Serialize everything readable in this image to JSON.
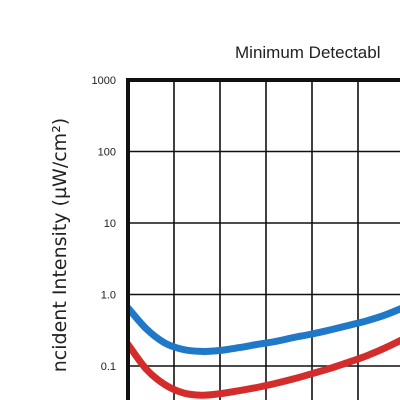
{
  "chart_data": {
    "type": "line",
    "title": "Minimum Detectabl",
    "ylabel": "ncident Intensity (µW/cm²)",
    "xlabel": "",
    "y_scale": "log",
    "y_ticks": [
      "1000",
      "100",
      "10",
      "1.0",
      "0.1"
    ],
    "ylim": [
      0.05,
      1000
    ],
    "x_range": [
      0,
      6
    ],
    "x_gridlines": 6,
    "grid": true,
    "colors": {
      "axis": "#111111",
      "grid": "#111111"
    },
    "series": [
      {
        "color": "#1f78c8",
        "x": [
          0,
          0.4,
          0.8,
          1.2,
          1.6,
          2.0,
          2.4,
          2.8,
          3.2,
          3.6,
          4.0,
          4.4,
          4.8,
          5.2,
          5.6,
          6.0
        ],
        "y": [
          0.65,
          0.33,
          0.21,
          0.17,
          0.16,
          0.165,
          0.18,
          0.2,
          0.22,
          0.25,
          0.28,
          0.32,
          0.37,
          0.43,
          0.52,
          0.66
        ]
      },
      {
        "color": "#d42b2b",
        "x": [
          0,
          0.4,
          0.8,
          1.2,
          1.6,
          2.0,
          2.4,
          2.8,
          3.2,
          3.6,
          4.0,
          4.4,
          4.8,
          5.2,
          5.6,
          6.0
        ],
        "y": [
          0.2,
          0.09,
          0.055,
          0.042,
          0.039,
          0.041,
          0.045,
          0.05,
          0.057,
          0.066,
          0.078,
          0.093,
          0.113,
          0.14,
          0.18,
          0.24
        ]
      }
    ]
  }
}
